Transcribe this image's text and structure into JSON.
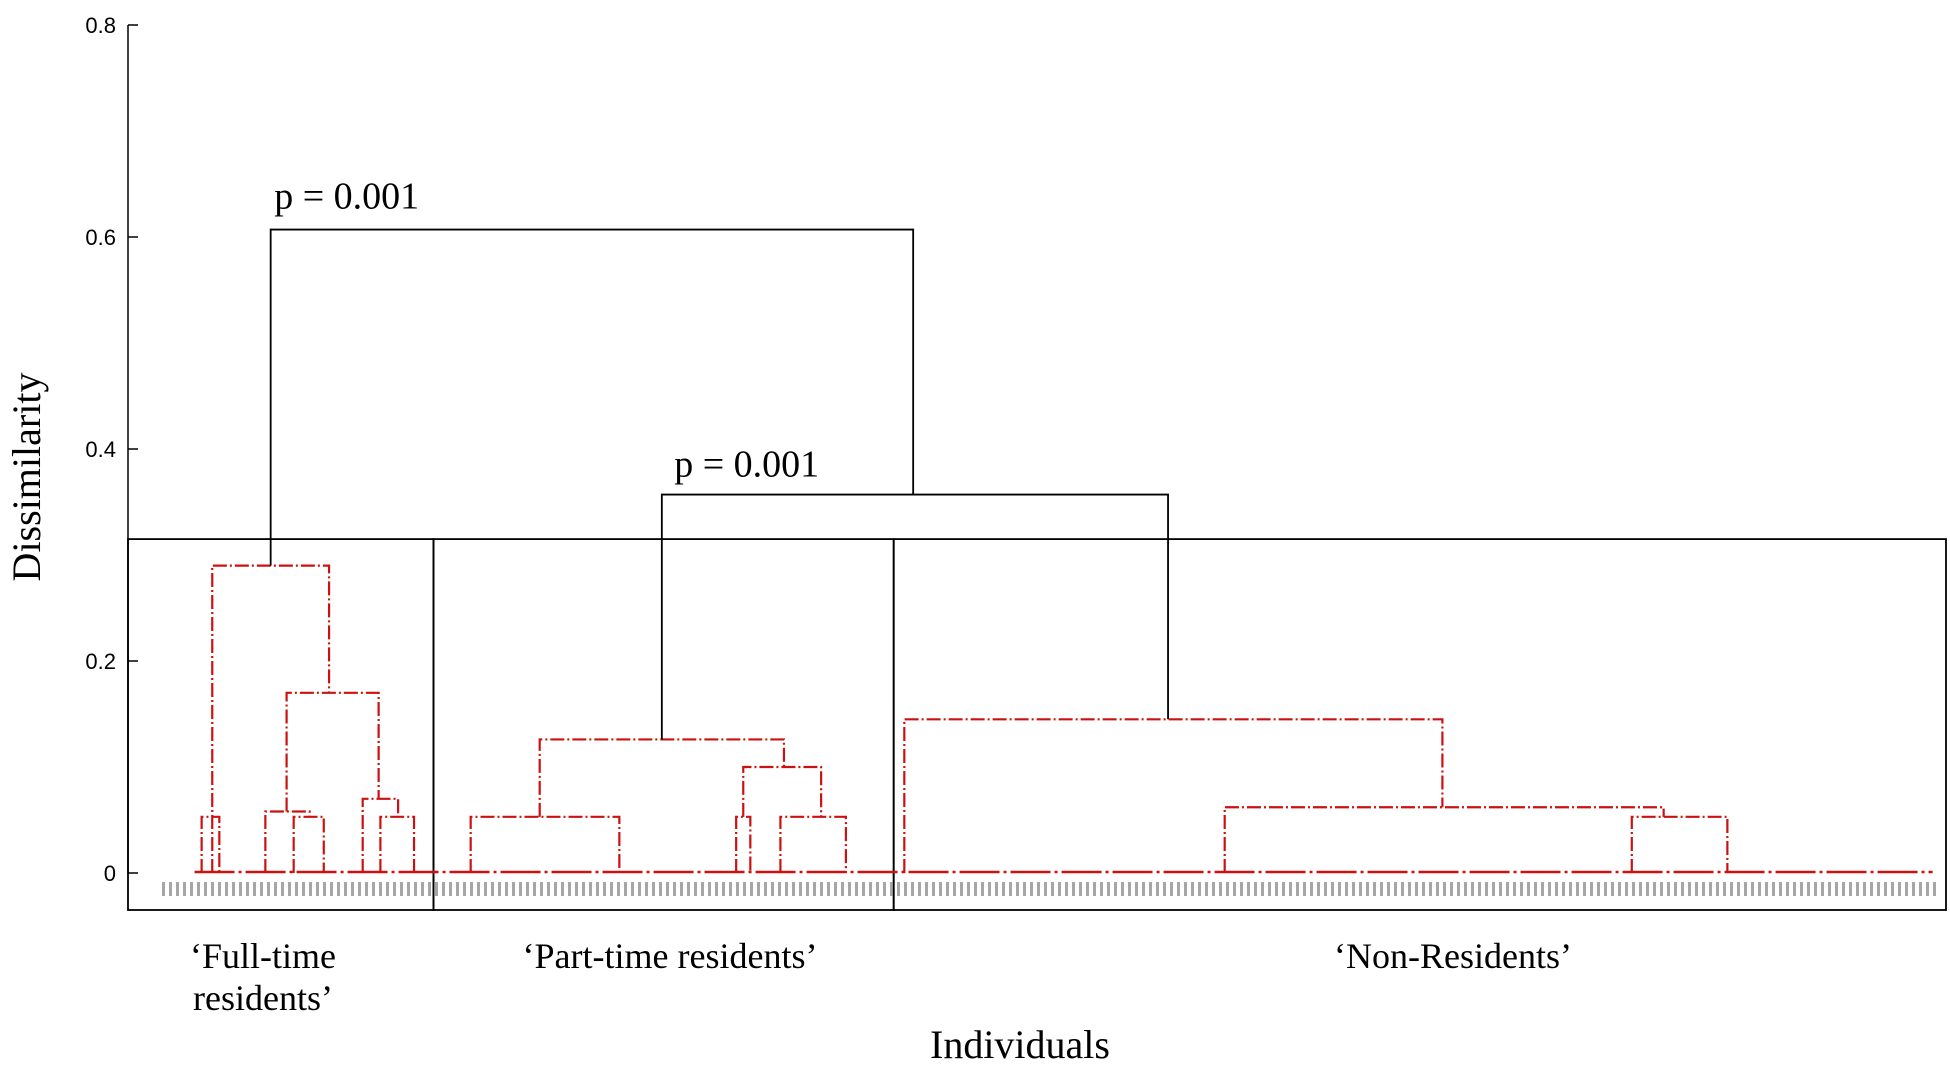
{
  "chart_data": {
    "type": "dendrogram",
    "ylabel": "Dissimilarity",
    "xlabel": "Individuals",
    "ylim": [
      0,
      0.8
    ],
    "yticks": [
      {
        "value": 0,
        "label": "0"
      },
      {
        "value": 0.2,
        "label": "0.2"
      },
      {
        "value": 0.4,
        "label": "0.4"
      },
      {
        "value": 0.6,
        "label": "0.6"
      },
      {
        "value": 0.8,
        "label": "0.8"
      }
    ],
    "leaf_range": [
      0,
      100
    ],
    "groups": [
      {
        "label_lines": [
          "‘Full-time",
          "residents’"
        ],
        "leaf_start": 0,
        "leaf_end": 15
      },
      {
        "label_lines": [
          "‘Part-time residents’"
        ],
        "leaf_start": 15,
        "leaf_end": 41
      },
      {
        "label_lines": [
          "‘Non-Residents’"
        ],
        "leaf_start": 41,
        "leaf_end": 100
      }
    ],
    "group_box_top": 0.315,
    "annotations": [
      {
        "text": "p = 0.001",
        "x": 6,
        "y": 0.61
      },
      {
        "text": "p = 0.001",
        "x": 28.6,
        "y": 0.357
      }
    ],
    "colors": {
      "top_links": "#000000",
      "cluster_links": "#cc1111",
      "leaf_labels": "#888888"
    },
    "links_top": [
      {
        "x1": 5.8,
        "x2": 42.1,
        "h": 0.607,
        "y1": 0.29,
        "y2": 0.357
      },
      {
        "x1": 27.9,
        "x2": 56.5,
        "h": 0.357,
        "y1": 0.126,
        "y2": 0.145
      }
    ],
    "links_cluster": [
      {
        "x1": 2.5,
        "x2": 9.1,
        "h": 0.29,
        "y1": 0.0,
        "y2": 0.17
      },
      {
        "x1": 6.7,
        "x2": 11.9,
        "h": 0.17,
        "y1": 0.058,
        "y2": 0.07
      },
      {
        "x1": 1.9,
        "x2": 2.9,
        "h": 0.053,
        "y1": 0.0,
        "y2": 0.0
      },
      {
        "x1": 5.5,
        "x2": 8.0,
        "h": 0.058,
        "y1": 0.0,
        "y2": 0.053
      },
      {
        "x1": 7.1,
        "x2": 8.8,
        "h": 0.053,
        "y1": 0.0,
        "y2": 0.0
      },
      {
        "x1": 11.0,
        "x2": 13.0,
        "h": 0.07,
        "y1": 0.0,
        "y2": 0.053
      },
      {
        "x1": 12.0,
        "x2": 13.9,
        "h": 0.053,
        "y1": 0.0,
        "y2": 0.0
      },
      {
        "x1": 21.0,
        "x2": 34.8,
        "h": 0.126,
        "y1": 0.053,
        "y2": 0.1
      },
      {
        "x1": 17.1,
        "x2": 25.5,
        "h": 0.053,
        "y1": 0.0,
        "y2": 0.0
      },
      {
        "x1": 32.5,
        "x2": 36.9,
        "h": 0.1,
        "y1": 0.053,
        "y2": 0.053
      },
      {
        "x1": 32.1,
        "x2": 32.9,
        "h": 0.053,
        "y1": 0.0,
        "y2": 0.0
      },
      {
        "x1": 34.6,
        "x2": 38.3,
        "h": 0.053,
        "y1": 0.0,
        "y2": 0.0
      },
      {
        "x1": 41.6,
        "x2": 72.0,
        "h": 0.145,
        "y1": 0.0,
        "y2": 0.062
      },
      {
        "x1": 59.7,
        "x2": 84.5,
        "h": 0.062,
        "y1": 0.0,
        "y2": 0.053
      },
      {
        "x1": 82.7,
        "x2": 88.1,
        "h": 0.053,
        "y1": 0.0,
        "y2": 0.0
      }
    ]
  }
}
